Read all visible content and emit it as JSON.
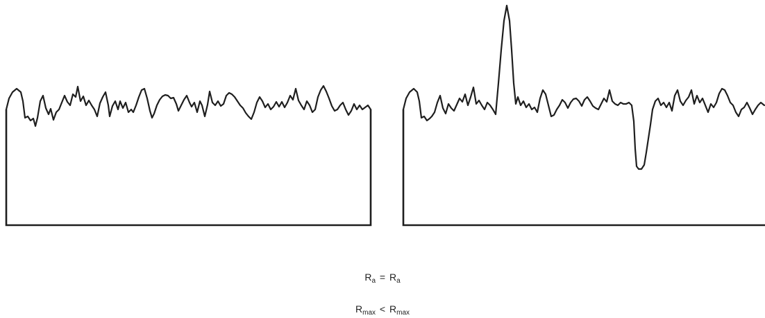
{
  "captions": [
    {
      "left": {
        "base": "R",
        "sub": "a"
      },
      "operator": "=",
      "right": {
        "base": "R",
        "sub": "a"
      }
    },
    {
      "left": {
        "base": "R",
        "sub": "max"
      },
      "operator": "<",
      "right": {
        "base": "R",
        "sub": "max"
      }
    }
  ],
  "profiles": [
    {
      "name": "left-surface-profile",
      "features": "uniform roughness"
    },
    {
      "name": "right-surface-profile",
      "features": "single peak and single valley"
    }
  ]
}
